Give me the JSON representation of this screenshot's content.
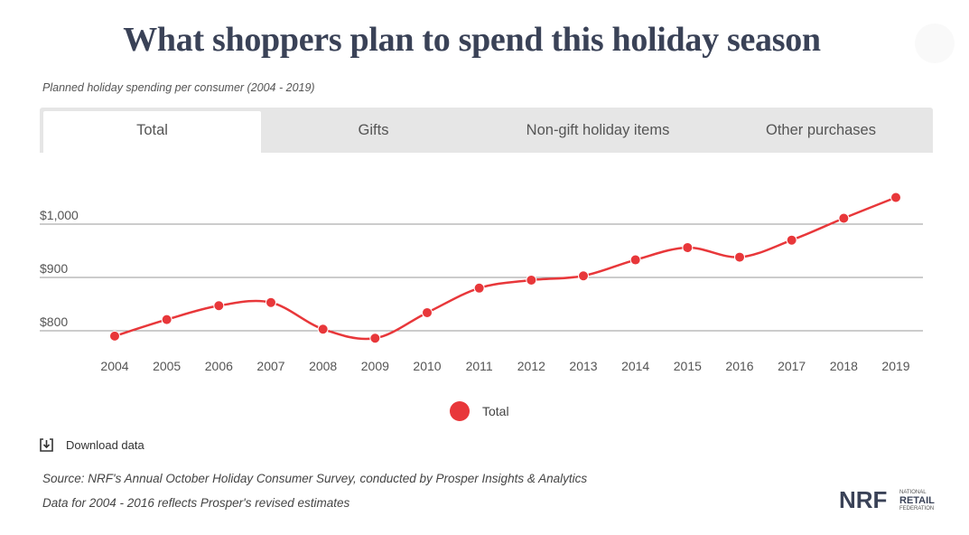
{
  "title": "What shoppers plan to spend this holiday season",
  "subtitle": "Planned holiday spending per consumer (2004 - 2019)",
  "tabs": [
    {
      "label": "Total",
      "active": true
    },
    {
      "label": "Gifts",
      "active": false
    },
    {
      "label": "Non-gift holiday items",
      "active": false
    },
    {
      "label": "Other purchases",
      "active": false
    }
  ],
  "chart_data": {
    "type": "line",
    "title": "",
    "xlabel": "",
    "ylabel": "",
    "x": [
      "2004",
      "2005",
      "2006",
      "2007",
      "2008",
      "2009",
      "2010",
      "2011",
      "2012",
      "2013",
      "2014",
      "2015",
      "2016",
      "2017",
      "2018",
      "2019"
    ],
    "series": [
      {
        "name": "Total",
        "color": "#e8373a",
        "values": [
          790,
          821,
          847,
          853,
          803,
          786,
          834,
          880,
          895,
          903,
          933,
          956,
          938,
          970,
          1011,
          1050
        ]
      }
    ],
    "yticks": [
      800,
      900,
      1000
    ],
    "ytick_labels": [
      "$800",
      "$900",
      "$1,000"
    ],
    "ylim": [
      780,
      1070
    ],
    "grid": true,
    "legend_position": "bottom-center",
    "smooth": true
  },
  "legend": {
    "label": "Total"
  },
  "download": {
    "label": "Download data",
    "icon": "download-icon"
  },
  "source_lines": [
    "Source: NRF's Annual October Holiday Consumer Survey, conducted by Prosper Insights & Analytics",
    "Data for 2004 - 2016 reflects Prosper's revised estimates"
  ],
  "logo": {
    "mark": "NRF",
    "line1": "NATIONAL",
    "line2": "RETAIL",
    "line3": "FEDERATION"
  }
}
